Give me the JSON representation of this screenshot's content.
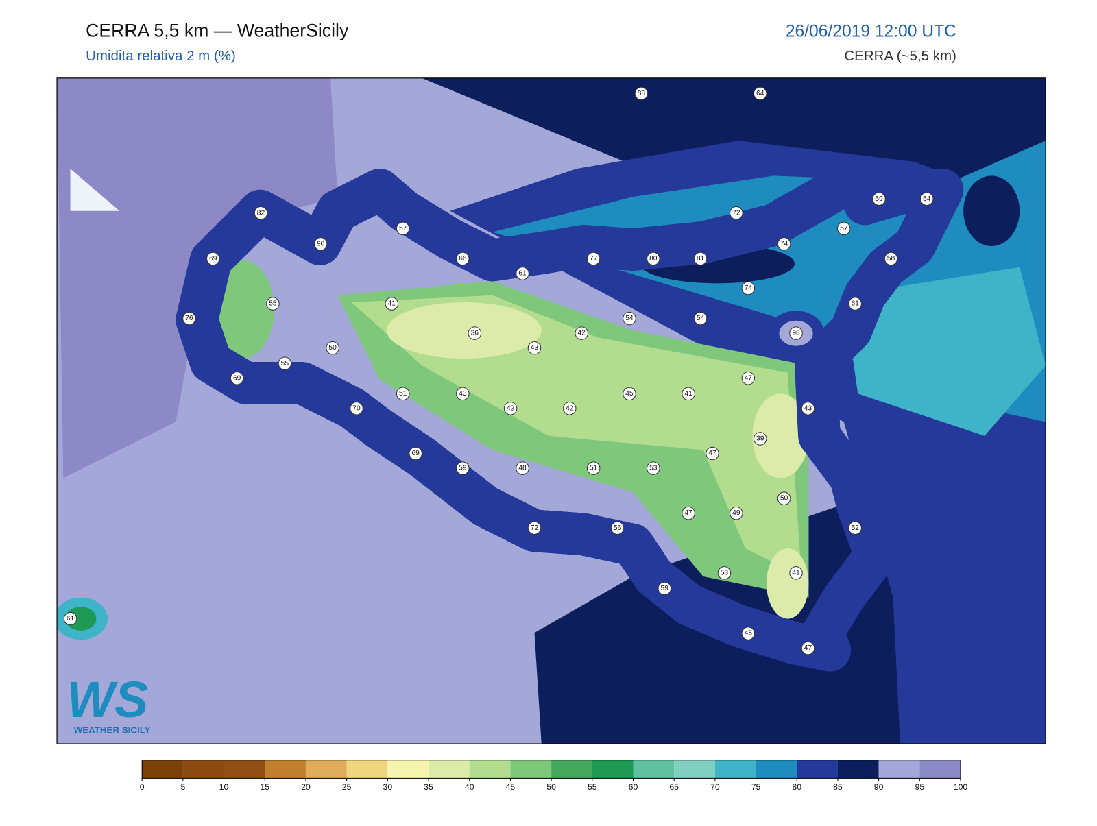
{
  "header": {
    "title": "CERRA 5,5 km — WeatherSicily",
    "subtitle": "Umidita relativa 2 m (%)",
    "date": "26/06/2019 12:00 UTC",
    "model": "CERRA (~5,5 km)"
  },
  "stations": [
    83,
    64,
    82,
    90,
    57,
    69,
    66,
    61,
    77,
    80,
    81,
    72,
    74,
    59,
    54,
    57,
    58,
    74,
    61,
    55,
    41,
    76,
    36,
    42,
    43,
    54,
    54,
    98,
    50,
    55,
    69,
    47,
    51,
    43,
    45,
    41,
    70,
    42,
    42,
    43,
    39,
    69,
    47,
    59,
    48,
    51,
    53,
    50,
    47,
    49,
    72,
    56,
    52,
    53,
    41,
    59,
    61,
    45,
    47
  ],
  "colorbar": {
    "ticks": [
      0,
      5,
      10,
      15,
      20,
      25,
      30,
      35,
      40,
      45,
      50,
      55,
      60,
      65,
      70,
      75,
      80,
      85,
      90,
      95,
      100
    ],
    "colors": [
      "#7a4209",
      "#8a4a10",
      "#8f4f15",
      "#c08030",
      "#dfad5a",
      "#f0d580",
      "#f5f5b0",
      "#dcebaa",
      "#b2dd8f",
      "#7fc77a",
      "#43a85c",
      "#1f9a55",
      "#5fc1a0",
      "#80cfc0",
      "#3fb3c8",
      "#1f8cc0",
      "#25399a",
      "#0c1f5c",
      "#a3a8d9",
      "#8d89c6"
    ]
  },
  "logo": {
    "mark": "WS",
    "name": "WEATHER SICILY"
  }
}
